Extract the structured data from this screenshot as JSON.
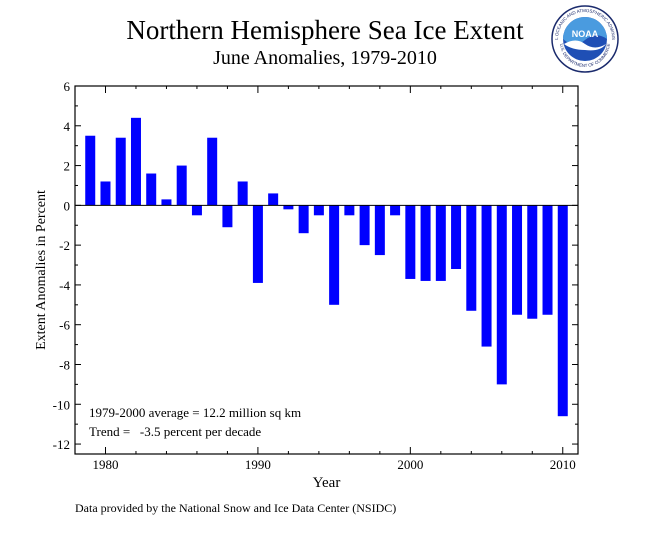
{
  "chart_data": {
    "type": "bar",
    "title": "Northern Hemisphere Sea Ice Extent",
    "subtitle": "June Anomalies, 1979-2010",
    "xlabel": "Year",
    "ylabel": "Extent Anomalies in Percent",
    "xlim": [
      1978,
      2011
    ],
    "ylim": [
      -12.5,
      6
    ],
    "yticks": [
      6,
      4,
      2,
      0,
      -2,
      -4,
      -6,
      -8,
      -10,
      -12
    ],
    "xticks": [
      1980,
      1990,
      2000,
      2010
    ],
    "grid": false,
    "bar_color": "#0000ff",
    "x": [
      1979,
      1980,
      1981,
      1982,
      1983,
      1984,
      1985,
      1986,
      1987,
      1988,
      1989,
      1990,
      1991,
      1992,
      1993,
      1994,
      1995,
      1996,
      1997,
      1998,
      1999,
      2000,
      2001,
      2002,
      2003,
      2004,
      2005,
      2006,
      2007,
      2008,
      2009,
      2010
    ],
    "values": [
      3.5,
      1.2,
      3.4,
      4.4,
      1.6,
      0.3,
      2.0,
      -0.5,
      3.4,
      -1.1,
      1.2,
      -3.9,
      0.6,
      -0.2,
      -1.4,
      -0.5,
      -5.0,
      -0.5,
      -2.0,
      -2.5,
      -0.5,
      -3.7,
      -3.8,
      -3.8,
      -3.2,
      -5.3,
      -7.1,
      -9.0,
      -5.5,
      -5.7,
      -5.5,
      -10.6
    ],
    "annotations": [
      "1979-2000 average = 12.2 million sq km",
      "Trend =   -3.5 percent per decade"
    ]
  },
  "logo": {
    "text": "NOAA",
    "ring_text_top": "NATIONAL OCEANIC AND ATMOSPHERIC ADMINISTRATION",
    "ring_text_bottom": "U.S. DEPARTMENT OF COMMERCE"
  },
  "credit": "Data provided by the National Snow and Ice Data Center (NSIDC)"
}
